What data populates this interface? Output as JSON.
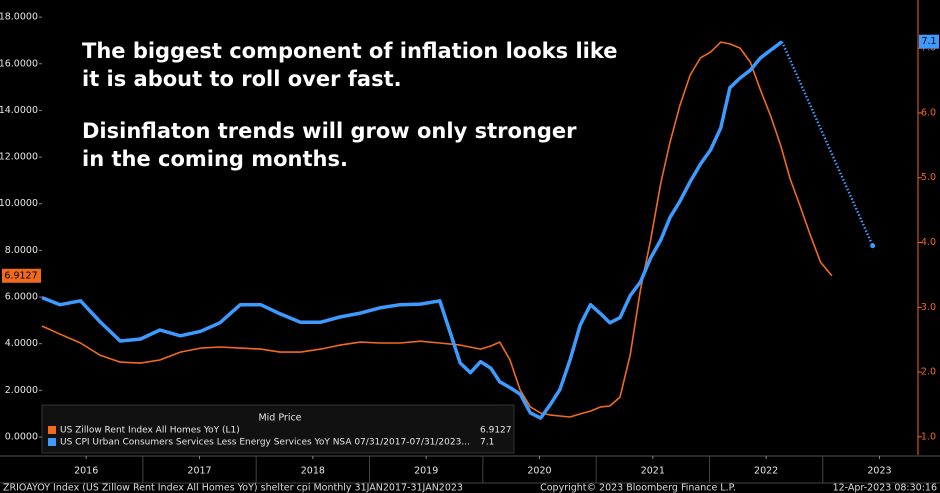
{
  "chart_data": {
    "type": "line",
    "annotation": [
      "The biggest component of inflation looks like",
      "it is about to roll over fast.",
      "Disinflaton trends will grow only stronger",
      "in the coming months."
    ],
    "legend_title": "Mid Price",
    "xlim": [
      2016.11,
      2023.84
    ],
    "xticks": [
      {
        "value": 2016.5,
        "label": "2016"
      },
      {
        "value": 2017.5,
        "label": "2017"
      },
      {
        "value": 2018.5,
        "label": "2018"
      },
      {
        "value": 2019.5,
        "label": "2019"
      },
      {
        "value": 2020.5,
        "label": "2020"
      },
      {
        "value": 2021.5,
        "label": "2021"
      },
      {
        "value": 2022.5,
        "label": "2022"
      },
      {
        "value": 2023.5,
        "label": "2023"
      }
    ],
    "ylim": [
      -0.77,
      18.39
    ],
    "yticks": [
      {
        "value": 0,
        "label": "0.0000"
      },
      {
        "value": 2,
        "label": "2.0000"
      },
      {
        "value": 4,
        "label": "4.0000"
      },
      {
        "value": 6,
        "label": "6.0000"
      },
      {
        "value": 8,
        "label": "8.0000"
      },
      {
        "value": 10,
        "label": "10.0000"
      },
      {
        "value": 12,
        "label": "12.0000"
      },
      {
        "value": 14,
        "label": "14.0000"
      },
      {
        "value": 16,
        "label": "16.0000"
      },
      {
        "value": 18,
        "label": "18.0000"
      }
    ],
    "y2lim": [
      0.72,
      7.62
    ],
    "y2ticks": [
      {
        "value": 1,
        "label": "1.0"
      },
      {
        "value": 2,
        "label": "2.0"
      },
      {
        "value": 3,
        "label": "3.0"
      },
      {
        "value": 4,
        "label": "4.0"
      },
      {
        "value": 5,
        "label": "5.0"
      },
      {
        "value": 6,
        "label": "6.0"
      },
      {
        "value": 7,
        "label": "7.0"
      }
    ],
    "grid": false,
    "series": [
      {
        "name": "US Zillow Rent Index All Homes YoY  (L1)",
        "color": "#f26b1d",
        "axis": "y",
        "x": [
          2016.11,
          2016.27,
          2016.45,
          2016.62,
          2016.8,
          2016.98,
          2017.15,
          2017.33,
          2017.51,
          2017.68,
          2017.86,
          2018.04,
          2018.21,
          2018.39,
          2018.57,
          2018.74,
          2018.92,
          2019.09,
          2019.27,
          2019.45,
          2019.62,
          2019.8,
          2019.98,
          2020.07,
          2020.15,
          2020.24,
          2020.33,
          2020.42,
          2020.51,
          2020.6,
          2020.68,
          2020.77,
          2020.86,
          2020.95,
          2021.04,
          2021.12,
          2021.21,
          2021.3,
          2021.39,
          2021.48,
          2021.57,
          2021.65,
          2021.74,
          2021.83,
          2021.92,
          2022.01,
          2022.1,
          2022.18,
          2022.27,
          2022.36,
          2022.45,
          2022.54,
          2022.63,
          2022.71,
          2022.8,
          2022.89,
          2022.98,
          2023.08
        ],
        "values": [
          4.76,
          4.41,
          4.03,
          3.51,
          3.21,
          3.17,
          3.3,
          3.64,
          3.81,
          3.86,
          3.81,
          3.77,
          3.64,
          3.64,
          3.77,
          3.94,
          4.07,
          4.03,
          4.03,
          4.11,
          4.03,
          3.94,
          3.77,
          3.9,
          4.07,
          3.3,
          2.01,
          1.29,
          1.03,
          0.94,
          0.9,
          0.86,
          0.99,
          1.11,
          1.29,
          1.33,
          1.71,
          3.51,
          6.3,
          8.44,
          10.89,
          12.6,
          14.23,
          15.52,
          16.25,
          16.5,
          16.93,
          16.85,
          16.67,
          16.07,
          14.87,
          13.76,
          12.47,
          11.1,
          9.9,
          8.66,
          7.5,
          6.9127
        ],
        "value_labels": {
          "57": "6.9127"
        }
      },
      {
        "name": "US CPI Urban Consumers Services Less Energy Services YoY NSA 07/31/2017-07/31/2023...",
        "color": "#3d9bff",
        "axis": "y2",
        "x": [
          2016.11,
          2016.27,
          2016.45,
          2016.62,
          2016.8,
          2016.98,
          2017.15,
          2017.33,
          2017.51,
          2017.68,
          2017.86,
          2018.04,
          2018.21,
          2018.39,
          2018.57,
          2018.74,
          2018.92,
          2019.09,
          2019.27,
          2019.45,
          2019.62,
          2019.71,
          2019.8,
          2019.89,
          2019.98,
          2020.07,
          2020.15,
          2020.24,
          2020.33,
          2020.42,
          2020.51,
          2020.6,
          2020.68,
          2020.77,
          2020.86,
          2020.95,
          2021.04,
          2021.12,
          2021.21,
          2021.3,
          2021.39,
          2021.48,
          2021.57,
          2021.65,
          2021.74,
          2021.83,
          2021.92,
          2022.01,
          2022.1,
          2022.18,
          2022.27,
          2022.36,
          2022.45,
          2022.54,
          2022.64
        ],
        "values": [
          3.15,
          3.04,
          3.1,
          2.78,
          2.48,
          2.51,
          2.65,
          2.56,
          2.63,
          2.76,
          3.04,
          3.04,
          2.9,
          2.77,
          2.77,
          2.85,
          2.91,
          2.99,
          3.04,
          3.05,
          3.1,
          2.62,
          2.14,
          1.99,
          2.16,
          2.06,
          1.85,
          1.76,
          1.66,
          1.37,
          1.29,
          1.51,
          1.73,
          2.19,
          2.73,
          3.04,
          2.9,
          2.76,
          2.84,
          3.18,
          3.39,
          3.76,
          4.04,
          4.38,
          4.64,
          4.94,
          5.21,
          5.43,
          5.77,
          6.39,
          6.54,
          6.66,
          6.85,
          6.97,
          7.1
        ],
        "value_labels": {
          "54": "7.1"
        },
        "projection": {
          "x": [
            2022.64,
            2023.44
          ],
          "values": [
            7.1,
            3.95
          ]
        }
      }
    ],
    "footer": {
      "left": "ZRIOAYOY Index (US Zillow Rent Index All Homes YoY) shelter cpi  Monthly 31JAN2017-31JAN2023",
      "center": "Copyright© 2023 Bloomberg Finance L.P.",
      "right": "12-Apr-2023 08:30:16"
    }
  }
}
